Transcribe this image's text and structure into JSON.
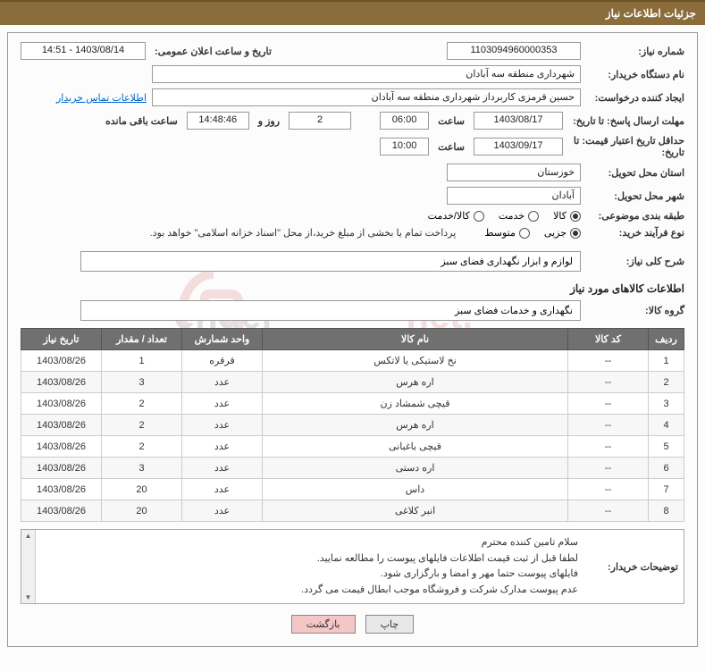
{
  "header": {
    "title": "جزئیات اطلاعات نیاز"
  },
  "fields": {
    "need_no_label": "شماره نیاز:",
    "need_no": "1103094960000353",
    "announce_label": "تاریخ و ساعت اعلان عمومی:",
    "announce_value": "1403/08/14 - 14:51",
    "buyer_org_label": "نام دستگاه خریدار:",
    "buyer_org": "شهرداری منطقه سه آبادان",
    "requester_label": "ایجاد کننده درخواست:",
    "requester": "حسین قرمزی کاربرداز شهرداری منطقه سه آبادان",
    "contact_link": "اطلاعات تماس خریدار",
    "deadline_label": "مهلت ارسال پاسخ: تا تاریخ:",
    "deadline_date": "1403/08/17",
    "deadline_time_label": "ساعت",
    "deadline_time": "06:00",
    "days_remaining": "2",
    "days_remaining_suffix": "روز و",
    "hours_remaining": "14:48:46",
    "hours_remaining_suffix": "ساعت باقی مانده",
    "validity_label": "حداقل تاریخ اعتبار قیمت: تا تاریخ:",
    "validity_date": "1403/09/17",
    "validity_time": "10:00",
    "province_label": "استان محل تحویل:",
    "province": "خوزستان",
    "city_label": "شهر محل تحویل:",
    "city": "آبادان",
    "category_label": "طبقه بندی موضوعی:",
    "cat_goods": "کالا",
    "cat_service": "خدمت",
    "cat_both": "کالا/خدمت",
    "process_label": "نوع فرآیند خرید:",
    "proc_small": "جزیی",
    "proc_medium": "متوسط",
    "process_note": "پرداخت تمام یا بخشی از مبلغ خرید،از محل \"اسناد خزانه اسلامی\" خواهد بود.",
    "desc_label": "شرح کلی نیاز:",
    "desc": "لوازم و ابزار نگهداری فضای سبز",
    "goods_section": "اطلاعات کالاهای مورد نیاز",
    "group_label": "گروه کالا:",
    "group": "نگهداری و خدمات فضای سبز"
  },
  "table": {
    "headers": [
      "ردیف",
      "کد کالا",
      "نام کالا",
      "واحد شمارش",
      "تعداد / مقدار",
      "تاریخ نیاز"
    ],
    "rows": [
      [
        "1",
        "--",
        "نخ لاستیکی یا لاتکس",
        "قرقره",
        "1",
        "1403/08/26"
      ],
      [
        "2",
        "--",
        "اره هرس",
        "عدد",
        "3",
        "1403/08/26"
      ],
      [
        "3",
        "--",
        "قیچی شمشاد زن",
        "عدد",
        "2",
        "1403/08/26"
      ],
      [
        "4",
        "--",
        "اره هرس",
        "عدد",
        "2",
        "1403/08/26"
      ],
      [
        "5",
        "--",
        "قیچی باغبانی",
        "عدد",
        "2",
        "1403/08/26"
      ],
      [
        "6",
        "--",
        "اره دستی",
        "عدد",
        "3",
        "1403/08/26"
      ],
      [
        "7",
        "--",
        "داس",
        "عدد",
        "20",
        "1403/08/26"
      ],
      [
        "8",
        "--",
        "انبر کلاغی",
        "عدد",
        "20",
        "1403/08/26"
      ]
    ]
  },
  "buyer_notes": {
    "label": "توضیحات خریدار:",
    "line1": "سلام تامین کننده محترم",
    "line2": "لطفا قبل از ثبت قیمت اطلاعات فایلهای پیوست را مطالعه نمایید.",
    "line3": "فایلهای پیوست حتما مهر و امضا و بارگزاری شود.",
    "line4": "عدم پیوست مدارک شرکت و فروشگاه موجب ابطال قیمت می گردد."
  },
  "buttons": {
    "print": "چاپ",
    "back": "بازگشت"
  },
  "colors": {
    "header_bg": "#8a6d3b",
    "table_header_bg": "#707070",
    "back_btn_bg": "#f5c6c6"
  }
}
